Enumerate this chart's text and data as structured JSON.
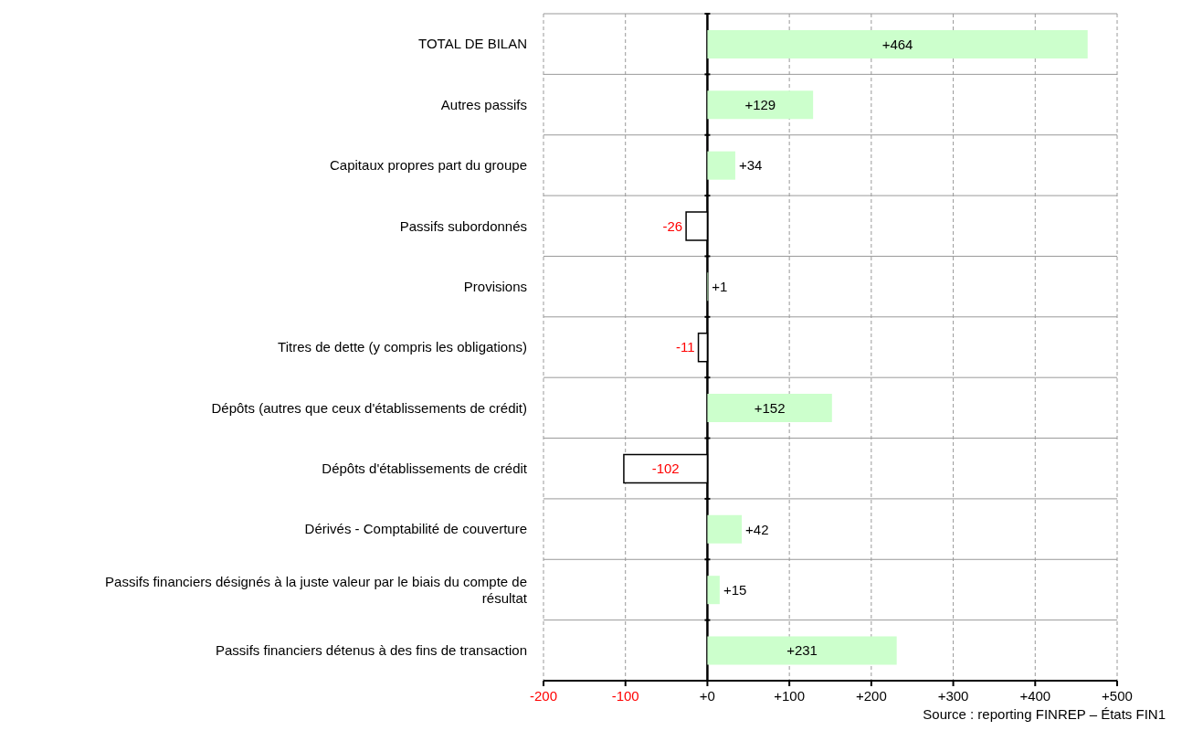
{
  "chart_data": {
    "type": "bar",
    "orientation": "horizontal",
    "categories": [
      "TOTAL DE BILAN",
      "Autres passifs",
      "Capitaux propres part du groupe",
      "Passifs subordonnés",
      "Provisions",
      "Titres de dette (y compris les obligations)",
      "Dépôts (autres que ceux d'établissements de crédit)",
      "Dépôts d'établissements de crédit",
      "Dérivés - Comptabilité de couverture",
      "Passifs financiers désignés à la juste valeur par le biais du compte de résultat",
      "Passifs financiers détenus à des fins de transaction"
    ],
    "values": [
      464,
      129,
      34,
      -26,
      1,
      -11,
      152,
      -102,
      42,
      15,
      231
    ],
    "value_labels": [
      "+464",
      "+129",
      "+34",
      "-26",
      "+1",
      "-11",
      "+152",
      "-102",
      "+42",
      "+15",
      "+231"
    ],
    "colors": [
      "#ccffcc",
      "#ccffcc",
      "#ccffcc",
      "#ffffff",
      "#ccffcc",
      "#ffffff",
      "#ccffcc",
      "#ffffff",
      "#ccffcc",
      "#ccffcc",
      "#ccffcc"
    ],
    "xlim": [
      -200,
      500
    ],
    "xticks": [
      {
        "value": -200,
        "label": "-200"
      },
      {
        "value": -100,
        "label": "-100"
      },
      {
        "value": 0,
        "label": "+0"
      },
      {
        "value": 100,
        "label": "+100"
      },
      {
        "value": 200,
        "label": "+200"
      },
      {
        "value": 300,
        "label": "+300"
      },
      {
        "value": 400,
        "label": "+400"
      },
      {
        "value": 500,
        "label": "+500"
      }
    ],
    "grid": true,
    "annotations": [
      "Source : reporting FINREP – États FIN1"
    ]
  }
}
